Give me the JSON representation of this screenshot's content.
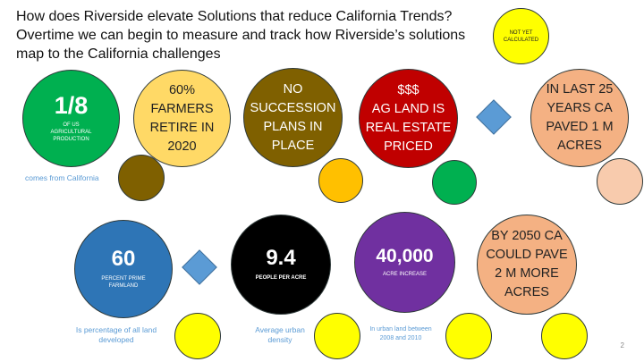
{
  "title": {
    "line1": "How does Riverside elevate Solutions that reduce California Trends?",
    "line2": "Overtime we can begin to measure and track how Riverside’s solutions",
    "line3": "map to the California challenges"
  },
  "not_yet": {
    "line1": "NOT YET",
    "line2": "CALCULATED"
  },
  "stat_ag_production": {
    "big": "1/8",
    "line1": "OF US",
    "line2": "AGRICULTURAL",
    "line3": "PRODUCTION",
    "caption": "comes from California"
  },
  "stat_farmers": {
    "line1": "60%",
    "line2": "FARMERS",
    "line3": "RETIRE IN",
    "line4": "2020"
  },
  "stat_succession": {
    "line1": "NO",
    "line2": "SUCCESSION",
    "line3": "PLANS IN",
    "line4": "PLACE"
  },
  "stat_ag_land": {
    "line1": "$$$",
    "line2": "AG LAND IS",
    "line3": "REAL ESTATE",
    "line4": "PRICED"
  },
  "stat_paved": {
    "line1": "IN LAST 25",
    "line2": "YEARS CA",
    "line3": "PAVED 1 M",
    "line4": "ACRES"
  },
  "stat_prime_farmland": {
    "big": "60",
    "line1": "PERCENT PRIME",
    "line2": "FARMLAND",
    "caption1": "Is percentage of all land",
    "caption2": "developed"
  },
  "stat_density": {
    "big": "9.4",
    "line1": "PEOPLE PER ACRE",
    "caption1": "Average urban",
    "caption2": "density"
  },
  "stat_acre_increase": {
    "big": "40,000",
    "line1": "ACRE INCREASE",
    "caption1": "In urban land between",
    "caption2": "2008 and 2010"
  },
  "stat_2050": {
    "line1": "BY 2050 CA",
    "line2": "COULD PAVE",
    "line3": "2 M MORE",
    "line4": "ACRES"
  },
  "page_number": "2",
  "colors": {
    "green": "#00b050",
    "light_yellow": "#ffd966",
    "olive": "#7f6000",
    "red": "#c00000",
    "peach": "#f4b183",
    "light_peach": "#f8cbad",
    "blue": "#2e75b6",
    "black": "#000000",
    "purple": "#7030a0",
    "yellow": "#ffff00",
    "amber": "#ffc000",
    "diamond_blue": "#5b9bd5",
    "caption_blue": "#5b9bd5"
  }
}
